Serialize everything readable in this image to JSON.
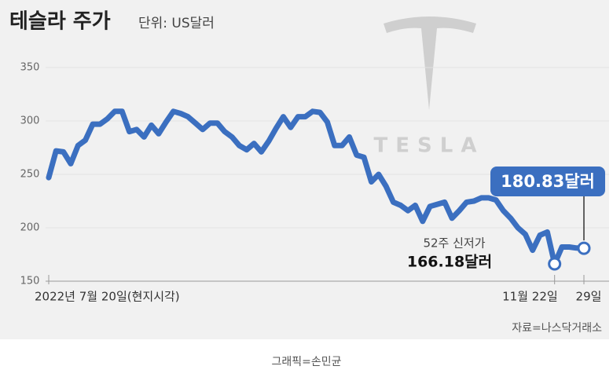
{
  "chart_data": {
    "type": "line",
    "title": "테슬라 주가",
    "subtitle": "단위: US달러",
    "watermark": "TESLA",
    "categories": [
      "2022년 7월 20일(현지시각)",
      null,
      null,
      null,
      null,
      null,
      null,
      null,
      null,
      null,
      null,
      null,
      null,
      null,
      null,
      null,
      null,
      null,
      null,
      null,
      null,
      null,
      null,
      null,
      null,
      null,
      null,
      null,
      null,
      null,
      null,
      null,
      null,
      null,
      null,
      null,
      null,
      null,
      null,
      null,
      null,
      null,
      null,
      null,
      null,
      null,
      null,
      null,
      null,
      null,
      null,
      null,
      null,
      null,
      null,
      null,
      null,
      null,
      null,
      null,
      null,
      null,
      null,
      null,
      null,
      null,
      null,
      null,
      null,
      "11월 22일",
      null,
      null,
      null,
      "29일"
    ],
    "values": [
      247,
      272,
      271,
      260,
      277,
      282,
      297,
      297,
      302,
      309,
      309,
      290,
      292,
      285,
      296,
      288,
      299,
      309,
      307,
      304,
      298,
      292,
      298,
      298,
      290,
      285,
      277,
      273,
      279,
      271,
      281,
      293,
      304,
      294,
      304,
      304,
      309,
      308,
      299,
      277,
      277,
      285,
      268,
      266,
      243,
      250,
      239,
      224,
      221,
      216,
      221,
      206,
      220,
      222,
      224,
      209,
      216,
      224,
      225,
      228,
      228,
      226,
      216,
      209,
      200,
      194,
      179,
      193,
      196,
      166.18,
      182,
      182,
      181,
      180.83
    ],
    "value_labels": [
      null,
      null,
      null,
      null,
      null,
      null,
      null,
      null,
      null,
      null,
      null,
      null,
      null,
      null,
      null,
      null,
      null,
      null,
      null,
      null,
      null,
      null,
      null,
      null,
      null,
      null,
      null,
      null,
      null,
      null,
      null,
      null,
      null,
      null,
      null,
      null,
      null,
      null,
      null,
      null,
      null,
      null,
      null,
      null,
      null,
      null,
      null,
      null,
      null,
      null,
      null,
      null,
      null,
      null,
      null,
      null,
      null,
      null,
      null,
      null,
      null,
      null,
      null,
      null,
      null,
      null,
      null,
      null,
      null,
      "166.18달러",
      null,
      null,
      null,
      "180.83달러"
    ],
    "annotation": "52주 신저가",
    "color": "#3b6fc0",
    "ylim": [
      150,
      375
    ],
    "yticks": [
      150,
      200,
      250,
      300,
      350
    ],
    "grid": true,
    "source": "자료=나스닥거래소",
    "credit": "그래픽=손민균"
  }
}
